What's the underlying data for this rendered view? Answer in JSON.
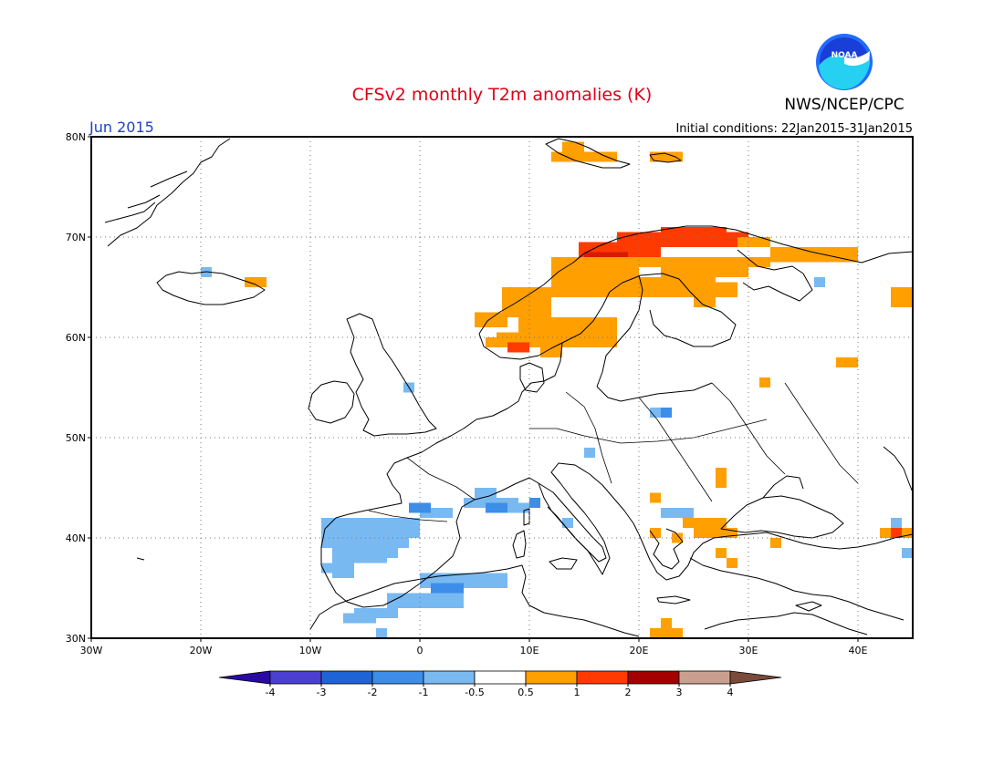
{
  "header": {
    "title": "CFSv2 monthly T2m anomalies (K)",
    "org": "NWS/NCEP/CPC",
    "logo_text": "NOAA",
    "month": "Jun 2015",
    "init_conditions": "Initial conditions: 22Jan2015-31Jan2015"
  },
  "map": {
    "lon_range": [
      -30,
      45
    ],
    "lat_range": [
      30,
      80
    ],
    "lat_labels": [
      "30N",
      "40N",
      "50N",
      "60N",
      "70N",
      "80N"
    ],
    "lon_labels": [
      "30W",
      "20W",
      "10W",
      "0",
      "10E",
      "20E",
      "30E",
      "40E"
    ],
    "gridlines": true
  },
  "colorbar": {
    "labels": [
      "-4",
      "-3",
      "-2",
      "-1",
      "-0.5",
      "0.5",
      "1",
      "2",
      "3",
      "4"
    ],
    "colors": [
      "#2a0aa0",
      "#4b3fd2",
      "#1f64d6",
      "#3c8ee8",
      "#78b9f2",
      "#ffffff",
      "#ff9f00",
      "#ff3a00",
      "#a30000",
      "#c9a090",
      "#7a4a3a"
    ]
  },
  "colors": {
    "title": "#e0001a",
    "month": "#1f3fcf",
    "orange": "#ff9f00",
    "red": "#ff3a00",
    "darkred": "#d81a00",
    "lightblue": "#78b9f2",
    "blue": "#3c8ee8"
  }
}
